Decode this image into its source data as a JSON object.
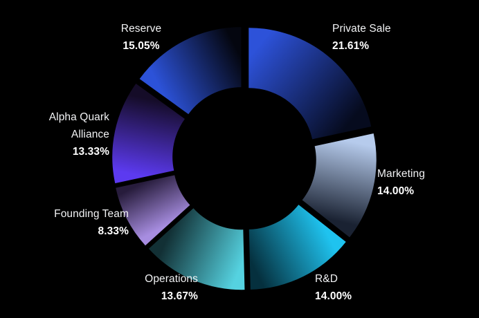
{
  "page": {
    "background_color": "#000000",
    "text_color": "#ffffff"
  },
  "chart_data": {
    "type": "pie",
    "subtype": "donut",
    "title": "",
    "direction": "clockwise",
    "start_angle_deg": 0,
    "label_position": "outside",
    "legend": "none",
    "slices": [
      {
        "label": "Private Sale",
        "value": 21.61,
        "pct_label": "21.61%",
        "color_bright": "#2D52D9",
        "color_dark": "#060B1E"
      },
      {
        "label": "Marketing",
        "value": 14.0,
        "pct_label": "14.00%",
        "color_bright": "#B6CBEC",
        "color_dark": "#1A2232"
      },
      {
        "label": "R&D",
        "value": 14.0,
        "pct_label": "14.00%",
        "color_bright": "#1FC3EF",
        "color_dark": "#05303E"
      },
      {
        "label": "Operations",
        "value": 13.67,
        "pct_label": "13.67%",
        "color_bright": "#55D2E0",
        "color_dark": "#123035"
      },
      {
        "label": "Founding Team",
        "value": 8.33,
        "pct_label": "8.33%",
        "color_bright": "#A78DE0",
        "color_dark": "#271C3C"
      },
      {
        "label": "Alpha Quark Alliance",
        "value": 13.33,
        "pct_label": "13.33%",
        "color_bright": "#5C3AF0",
        "color_dark": "#150C28"
      },
      {
        "label": "Reserve",
        "value": 15.05,
        "pct_label": "15.05%",
        "color_bright": "#2C52D8",
        "color_dark": "#04060F"
      }
    ]
  }
}
